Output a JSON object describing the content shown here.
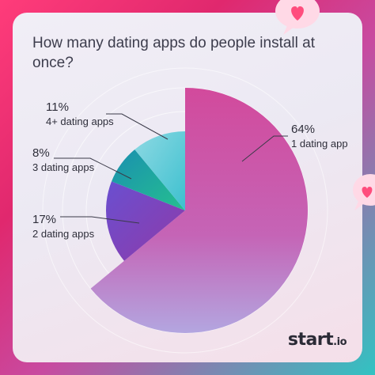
{
  "title": "How many dating apps do people install at once?",
  "brand": {
    "name": "start",
    "suffix": ".io"
  },
  "chart_data": {
    "type": "pie",
    "title": "How many dating apps do people install at once?",
    "slices": [
      {
        "label": "1 dating app",
        "percent_label": "64%",
        "value": 64,
        "color": "#d24a9c"
      },
      {
        "label": "2 dating apps",
        "percent_label": "17%",
        "value": 17,
        "color": "#7a3fb8"
      },
      {
        "label": "3 dating apps",
        "percent_label": "8%",
        "value": 8,
        "color": "#1aa39e"
      },
      {
        "label": "4+ dating apps",
        "percent_label": "11%",
        "value": 11,
        "color": "#4fc6d2"
      }
    ],
    "legend": "none",
    "grid": false
  },
  "icons": [
    "heart-bubble-icon",
    "heart-bubble-icon"
  ]
}
